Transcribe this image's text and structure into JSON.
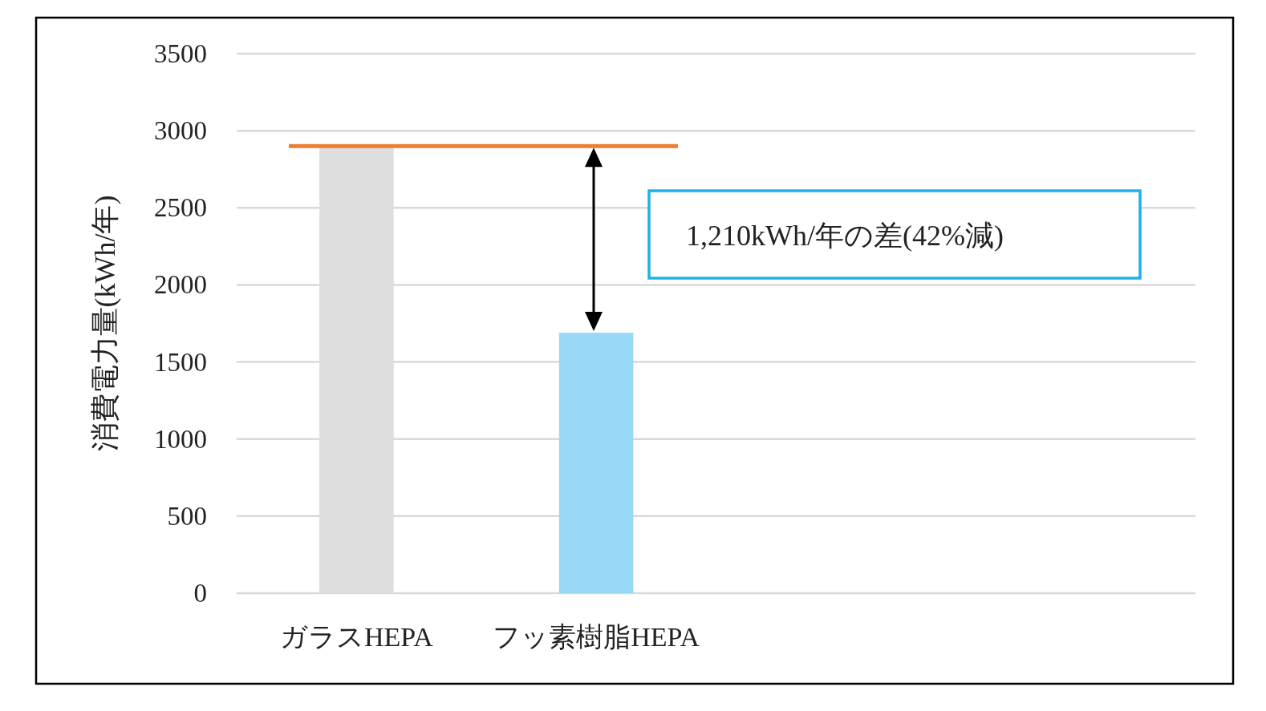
{
  "chart_data": {
    "type": "bar",
    "ylabel": "消費電力量(kWh/年)",
    "categories": [
      "ガラスHEPA",
      "フッ素樹脂HEPA",
      null,
      null
    ],
    "values": [
      2900,
      1690,
      null,
      null
    ],
    "colors": [
      "#dedede",
      "#97d9f6",
      null,
      null
    ],
    "ylim": [
      0,
      3500
    ],
    "yticks": [
      0,
      500,
      1000,
      1500,
      2000,
      2500,
      3000,
      3500
    ],
    "grid": "y",
    "ref_lines": [
      {
        "axis": "y",
        "value": 2900,
        "color": "#ed7d31"
      }
    ],
    "annotations": [
      "1,210kWh/年の差(42%減)"
    ]
  }
}
